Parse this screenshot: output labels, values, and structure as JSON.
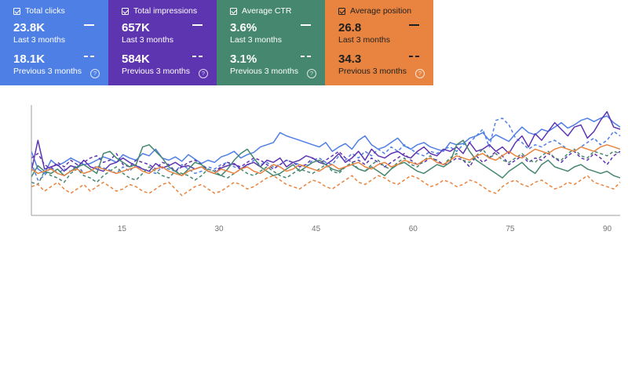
{
  "cards": [
    {
      "id": "clicks",
      "label": "Total clicks",
      "value": "23.8K",
      "period": "Last 3 months",
      "prev_value": "18.1K",
      "prev_period": "Previous 3 months",
      "color": "#4e7fe5",
      "help": "?"
    },
    {
      "id": "impressions",
      "label": "Total impressions",
      "value": "657K",
      "period": "Last 3 months",
      "prev_value": "584K",
      "prev_period": "Previous 3 months",
      "color": "#5e35b1",
      "help": "?"
    },
    {
      "id": "ctr",
      "label": "Average CTR",
      "value": "3.6%",
      "period": "Last 3 months",
      "prev_value": "3.1%",
      "prev_period": "Previous 3 months",
      "color": "#45876f",
      "help": "?"
    },
    {
      "id": "position",
      "label": "Average position",
      "value": "26.8",
      "period": "Last 3 months",
      "prev_value": "34.3",
      "prev_period": "Previous 3 months",
      "color": "#e8843f",
      "help": "?"
    }
  ],
  "chart_data": {
    "type": "line",
    "title": "",
    "xlabel": "",
    "ylabel": "",
    "x_ticks": [
      "15",
      "30",
      "45",
      "60",
      "75",
      "90"
    ],
    "xlim": [
      1,
      92
    ],
    "ylim": [
      0,
      100
    ],
    "y_axis_labels": "hidden (each metric independently scaled)",
    "series": [
      {
        "name": "Total clicks (Last 3 months)",
        "color": "#4e7fe5",
        "style": "solid",
        "values": [
          58,
          42,
          38,
          50,
          45,
          48,
          52,
          49,
          46,
          47,
          50,
          53,
          51,
          48,
          55,
          52,
          50,
          56,
          54,
          60,
          52,
          50,
          53,
          49,
          55,
          51,
          47,
          50,
          48,
          53,
          55,
          58,
          52,
          55,
          57,
          62,
          64,
          66,
          75,
          72,
          70,
          68,
          66,
          64,
          62,
          66,
          58,
          62,
          65,
          60,
          68,
          72,
          64,
          60,
          62,
          66,
          70,
          63,
          60,
          64,
          66,
          62,
          60,
          58,
          66,
          64,
          65,
          70,
          72,
          75,
          68,
          73,
          70,
          67,
          74,
          80,
          75,
          73,
          78,
          76,
          80,
          84,
          79,
          82,
          86,
          88,
          85,
          88,
          90,
          84,
          80
        ]
      },
      {
        "name": "Total clicks (Previous 3 months)",
        "color": "#4e7fe5",
        "style": "dashed",
        "values": [
          48,
          32,
          36,
          44,
          38,
          42,
          40,
          46,
          38,
          40,
          45,
          43,
          41,
          38,
          44,
          40,
          46,
          42,
          40,
          38,
          44,
          42,
          40,
          46,
          42,
          38,
          40,
          44,
          42,
          46,
          48,
          44,
          42,
          45,
          50,
          46,
          48,
          44,
          46,
          50,
          48,
          46,
          44,
          50,
          52,
          48,
          46,
          54,
          50,
          56,
          52,
          58,
          54,
          60,
          56,
          62,
          58,
          64,
          60,
          56,
          54,
          58,
          56,
          60,
          62,
          58,
          64,
          66,
          72,
          78,
          62,
          86,
          88,
          82,
          70,
          66,
          60,
          64,
          62,
          66,
          68,
          64,
          60,
          58,
          62,
          66,
          70,
          64,
          68,
          76,
          72
        ]
      },
      {
        "name": "Total impressions (Last 3 months)",
        "color": "#5e35b1",
        "style": "solid",
        "values": [
          40,
          68,
          42,
          44,
          46,
          40,
          45,
          43,
          50,
          44,
          42,
          40,
          46,
          48,
          52,
          48,
          45,
          42,
          40,
          47,
          43,
          45,
          48,
          44,
          45,
          42,
          44,
          40,
          38,
          43,
          45,
          47,
          42,
          46,
          48,
          44,
          50,
          48,
          52,
          44,
          48,
          50,
          54,
          52,
          48,
          46,
          50,
          56,
          48,
          52,
          58,
          50,
          60,
          54,
          52,
          56,
          58,
          54,
          52,
          58,
          62,
          56,
          54,
          60,
          58,
          62,
          56,
          66,
          58,
          60,
          64,
          58,
          62,
          56,
          66,
          72,
          62,
          74,
          68,
          76,
          84,
          78,
          72,
          80,
          82,
          70,
          76,
          86,
          94,
          80,
          78
        ]
      },
      {
        "name": "Total impressions (Previous 3 months)",
        "color": "#5e35b1",
        "style": "dashed",
        "values": [
          52,
          56,
          46,
          42,
          48,
          44,
          50,
          46,
          48,
          52,
          54,
          48,
          50,
          56,
          46,
          44,
          50,
          48,
          46,
          42,
          48,
          46,
          40,
          44,
          48,
          50,
          46,
          42,
          40,
          44,
          48,
          46,
          44,
          48,
          52,
          50,
          46,
          42,
          46,
          50,
          48,
          44,
          46,
          52,
          48,
          50,
          54,
          58,
          52,
          48,
          50,
          46,
          52,
          48,
          44,
          48,
          52,
          56,
          50,
          46,
          48,
          52,
          50,
          46,
          48,
          52,
          50,
          44,
          54,
          48,
          52,
          58,
          54,
          46,
          50,
          54,
          48,
          52,
          50,
          56,
          52,
          48,
          54,
          58,
          52,
          50,
          56,
          52,
          46,
          54,
          58
        ]
      },
      {
        "name": "Average CTR (Last 3 months)",
        "color": "#45876f",
        "style": "solid",
        "values": [
          35,
          45,
          40,
          38,
          42,
          36,
          40,
          44,
          46,
          42,
          38,
          56,
          58,
          52,
          48,
          44,
          46,
          62,
          64,
          58,
          52,
          44,
          40,
          36,
          42,
          48,
          46,
          40,
          38,
          36,
          42,
          50,
          56,
          60,
          52,
          44,
          40,
          36,
          38,
          42,
          46,
          40,
          44,
          48,
          50,
          46,
          42,
          40,
          44,
          46,
          42,
          40,
          44,
          40,
          36,
          42,
          46,
          48,
          44,
          40,
          38,
          42,
          46,
          44,
          48,
          64,
          68,
          58,
          50,
          46,
          42,
          38,
          34,
          40,
          44,
          48,
          42,
          38,
          46,
          50,
          44,
          42,
          40,
          44,
          46,
          42,
          40,
          38,
          40,
          36,
          34
        ]
      },
      {
        "name": "Average CTR (Previous 3 months)",
        "color": "#45876f",
        "style": "dashed",
        "values": [
          30,
          28,
          40,
          36,
          34,
          30,
          38,
          42,
          36,
          34,
          30,
          36,
          40,
          44,
          38,
          34,
          32,
          38,
          44,
          40,
          36,
          34,
          40,
          38,
          36,
          32,
          36,
          42,
          40,
          36,
          34,
          38,
          42,
          38,
          36,
          40,
          44,
          40,
          36,
          34,
          38,
          42,
          40,
          38,
          42,
          46,
          40,
          38,
          44,
          48,
          42,
          40,
          46,
          50,
          44,
          42,
          48,
          52,
          46,
          44,
          50,
          54,
          48,
          46,
          52,
          56,
          50,
          48,
          54,
          60,
          52,
          56,
          50,
          48,
          52,
          56,
          50,
          48,
          54,
          58,
          52,
          50,
          56,
          60,
          54,
          52,
          58,
          56,
          54,
          58,
          56
        ]
      },
      {
        "name": "Average position (Last 3 months)",
        "color": "#e8843f",
        "style": "solid",
        "values": [
          42,
          38,
          40,
          42,
          38,
          36,
          40,
          42,
          38,
          40,
          44,
          42,
          40,
          38,
          40,
          42,
          44,
          40,
          38,
          42,
          44,
          40,
          38,
          36,
          40,
          42,
          44,
          40,
          38,
          42,
          40,
          38,
          42,
          44,
          40,
          38,
          42,
          46,
          44,
          40,
          42,
          46,
          44,
          42,
          40,
          44,
          46,
          42,
          44,
          46,
          48,
          44,
          42,
          46,
          48,
          44,
          46,
          50,
          48,
          46,
          50,
          52,
          48,
          46,
          50,
          54,
          52,
          50,
          54,
          56,
          52,
          50,
          54,
          58,
          54,
          52,
          56,
          60,
          58,
          56,
          60,
          62,
          60,
          58,
          62,
          60,
          58,
          62,
          64,
          62,
          60
        ]
      },
      {
        "name": "Average position (Previous 3 months)",
        "color": "#e8843f",
        "style": "dashed",
        "values": [
          26,
          28,
          22,
          26,
          30,
          24,
          20,
          24,
          28,
          22,
          26,
          30,
          26,
          22,
          24,
          28,
          26,
          22,
          20,
          24,
          28,
          30,
          24,
          18,
          22,
          26,
          28,
          24,
          20,
          22,
          26,
          30,
          28,
          24,
          26,
          30,
          34,
          36,
          32,
          28,
          26,
          24,
          28,
          32,
          30,
          26,
          24,
          28,
          32,
          36,
          30,
          28,
          32,
          36,
          34,
          30,
          28,
          32,
          36,
          34,
          30,
          26,
          28,
          32,
          30,
          26,
          28,
          32,
          30,
          26,
          22,
          20,
          26,
          30,
          32,
          28,
          26,
          30,
          32,
          28,
          24,
          26,
          30,
          28,
          32,
          36,
          30,
          28,
          26,
          24,
          30
        ]
      }
    ]
  }
}
